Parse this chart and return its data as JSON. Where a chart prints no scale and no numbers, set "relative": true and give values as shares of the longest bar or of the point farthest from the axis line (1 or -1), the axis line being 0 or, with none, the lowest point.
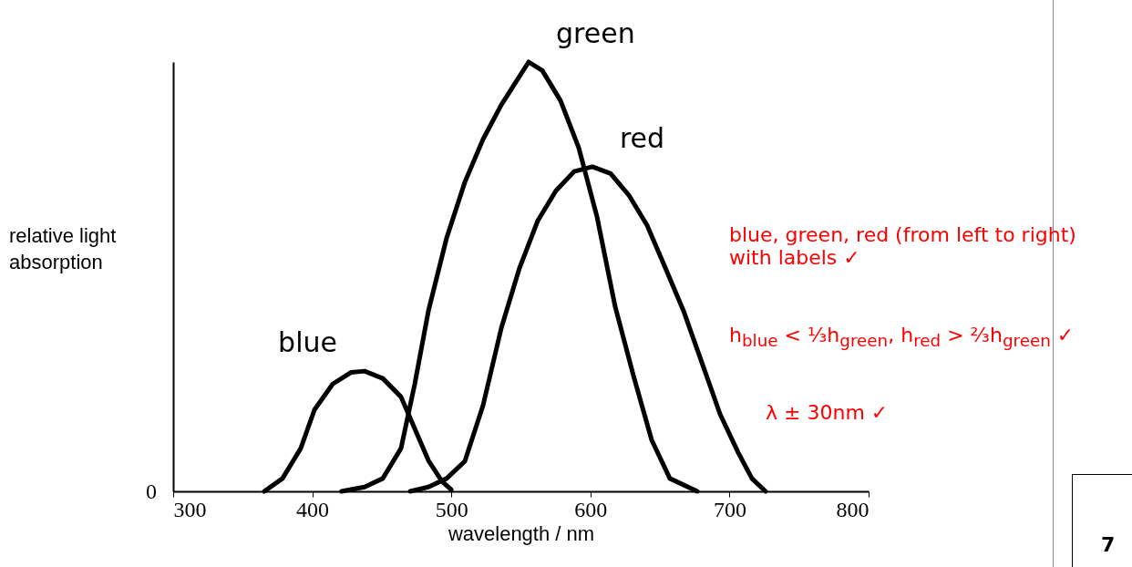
{
  "chart_data": {
    "type": "line",
    "xlabel": "wavelength / nm",
    "ylabel": "relative light absorption",
    "relative": true,
    "xlim": [
      300,
      800
    ],
    "xticks": [
      300,
      400,
      500,
      600,
      700,
      800
    ],
    "grid": false,
    "marker": "none",
    "line_style": "solid",
    "series": [
      {
        "name": "blue",
        "color": "#000000",
        "x": [
          365.5,
          378.6,
          391.7,
          401.6,
          414.7,
          427.8,
          437.6,
          450.7,
          463.8,
          473.7,
          483.5,
          493.3,
          499.9
        ],
        "values": [
          0,
          0.03,
          0.1,
          0.19,
          0.25,
          0.277,
          0.28,
          0.263,
          0.22,
          0.146,
          0.072,
          0.023,
          0.004
        ]
      },
      {
        "name": "green",
        "color": "#000000",
        "x": [
          421,
          437.6,
          450.7,
          463.8,
          473.7,
          483.5,
          496.6,
          509.7,
          522.8,
          535.9,
          545.7,
          555.6,
          565.4,
          578.5,
          591.6,
          604.7,
          617.8,
          630.9,
          644,
          657.1,
          676.8
        ],
        "values": [
          0,
          0.01,
          0.03,
          0.1,
          0.25,
          0.42,
          0.59,
          0.72,
          0.82,
          0.9,
          0.95,
          1,
          0.98,
          0.91,
          0.8,
          0.64,
          0.43,
          0.27,
          0.12,
          0.03,
          0
        ]
      },
      {
        "name": "red",
        "color": "#000000",
        "x": [
          470.4,
          483.5,
          496.6,
          509.7,
          522.8,
          535.9,
          549,
          562.1,
          575.2,
          588.3,
          601.4,
          614.5,
          627.6,
          640.7,
          653.9,
          667,
          680.1,
          693.2,
          706.3,
          716.1,
          725.9
        ],
        "values": [
          0,
          0.01,
          0.03,
          0.07,
          0.2,
          0.38,
          0.52,
          0.63,
          0.7,
          0.745,
          0.756,
          0.74,
          0.69,
          0.62,
          0.52,
          0.42,
          0.3,
          0.18,
          0.09,
          0.03,
          0
        ]
      }
    ],
    "annotations": [
      "0",
      "blue, green, red (from left to right) with labels ✓",
      "h$_{blue}$ < ⅓h$_{green}$, h$_{red}$ > ⅔h$_{green}$ ✓",
      "λ ± 30nm ✓",
      "7"
    ]
  }
}
